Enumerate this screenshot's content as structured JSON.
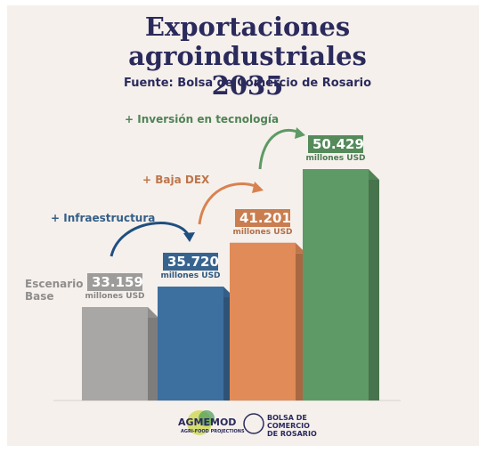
{
  "chart_data": {
    "type": "bar",
    "title": "Exportaciones agroindustriales 2035",
    "subtitle": "Fuente: Bolsa de Comercio de Rosario",
    "unit_label": "millones USD",
    "categories": [
      "Escenario Base",
      "+ Infraestructura",
      "+ Baja DEX",
      "+ Inversión en tecnología"
    ],
    "values": [
      33159,
      35720,
      41201,
      50429
    ],
    "value_labels": [
      "33.159",
      "35.720",
      "41.201",
      "50.429"
    ],
    "colors": [
      "#a9a7a5",
      "#3d6f9f",
      "#e08b58",
      "#5e9a65"
    ]
  },
  "footer": {
    "logo1": "AGMEMOD",
    "logo1_sub": "AGRI-FOOD PROJECTIONS",
    "logo2": "BOLSA DE COMERCIO DE ROSARIO"
  }
}
